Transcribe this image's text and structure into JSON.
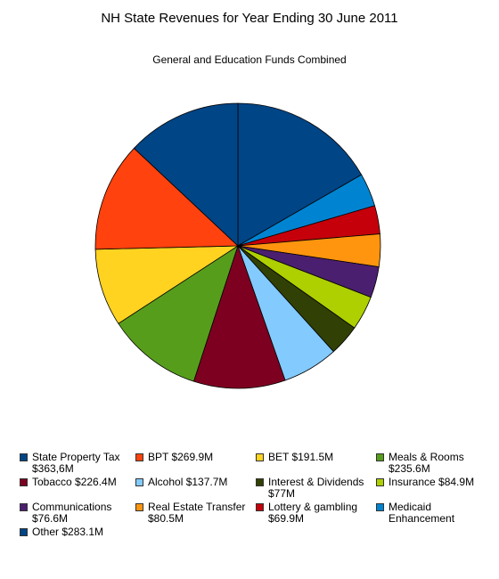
{
  "chart_data": {
    "type": "pie",
    "title": "NH State Revenues for Year Ending 30 June 2011",
    "subtitle": "General and Education Funds Combined",
    "legend_position": "bottom",
    "slices": [
      {
        "label": "State Property Tax $363,6M",
        "value": 363.6,
        "color": "#004586"
      },
      {
        "label": "BPT $269.9M",
        "value": 269.9,
        "color": "#ff420e"
      },
      {
        "label": "BET $191.5M",
        "value": 191.5,
        "color": "#ffd320"
      },
      {
        "label": "Meals & Rooms $235.6M",
        "value": 235.6,
        "color": "#579d1c"
      },
      {
        "label": "Tobacco $226.4M",
        "value": 226.4,
        "color": "#7e0021"
      },
      {
        "label": "Alcohol $137.7M",
        "value": 137.7,
        "color": "#83caff"
      },
      {
        "label": "Interest & Dividends $77M",
        "value": 77.0,
        "color": "#314004"
      },
      {
        "label": "Insurance $84.9M",
        "value": 84.9,
        "color": "#aecf00"
      },
      {
        "label": "Communications $76.6M",
        "value": 76.6,
        "color": "#4b1f6f"
      },
      {
        "label": "Real Estate Transfer $80.5M",
        "value": 80.5,
        "color": "#ff950e"
      },
      {
        "label": "Lottery & gambling $69.9M",
        "value": 69.9,
        "color": "#c5000b"
      },
      {
        "label": "Medicaid Enhancement",
        "value": 82.0,
        "color": "#0084d1"
      },
      {
        "label": "Other $283.1M",
        "value": 283.1,
        "color": "#004586"
      }
    ],
    "draw_order": [
      0,
      11,
      10,
      9,
      8,
      7,
      6,
      5,
      4,
      3,
      2,
      1,
      12
    ]
  }
}
